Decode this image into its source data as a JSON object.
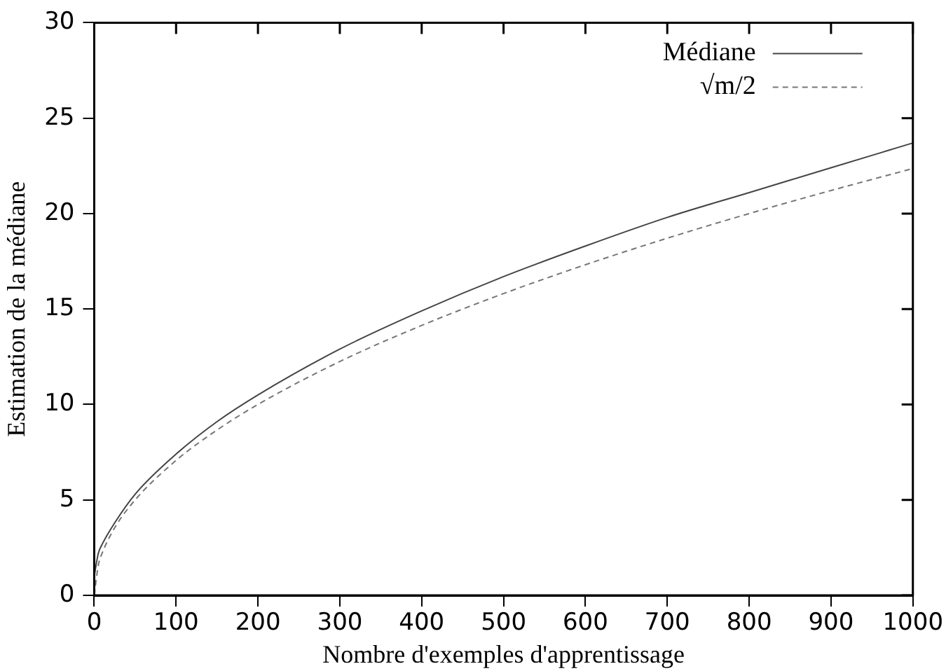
{
  "chart_data": {
    "type": "line",
    "xlabel": "Nombre d'exemples d'apprentissage",
    "ylabel": "Estimation de la médiane",
    "x": [
      0,
      5,
      10,
      25,
      50,
      100,
      150,
      200,
      300,
      400,
      500,
      600,
      700,
      800,
      900,
      1000
    ],
    "series": [
      {
        "name": "Médiane",
        "color": "#444444",
        "line_style": "solid",
        "values": [
          1,
          2.2,
          2.7,
          3.8,
          5.3,
          7.4,
          9.1,
          10.5,
          12.9,
          14.9,
          16.7,
          18.3,
          19.8,
          21.1,
          22.4,
          23.7
        ]
      },
      {
        "name": "√m/2",
        "color": "#777777",
        "line_style": "dashed",
        "values": [
          0,
          1.58,
          2.24,
          3.54,
          5,
          7.07,
          8.66,
          10,
          12.25,
          14.14,
          15.81,
          17.32,
          18.71,
          20,
          21.21,
          22.36
        ]
      }
    ],
    "xlim": [
      0,
      1000
    ],
    "xticks": [
      0,
      100,
      200,
      300,
      400,
      500,
      600,
      700,
      800,
      900,
      1000
    ],
    "ylim": [
      0,
      30
    ],
    "yticks": [
      0,
      5,
      10,
      15,
      20,
      25,
      30
    ],
    "grid": false,
    "legend": "top right",
    "marker": "none"
  }
}
